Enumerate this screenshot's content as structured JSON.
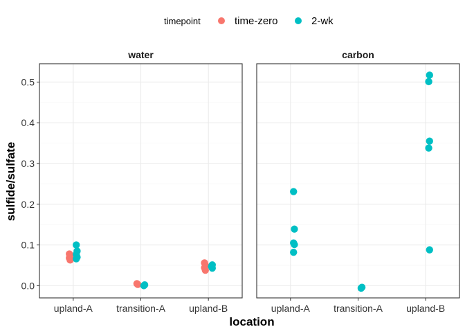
{
  "chart_data": {
    "type": "scatter",
    "xlabel": "location",
    "ylabel": "sulfide/sulfate",
    "categories": [
      "upland-A",
      "transition-A",
      "upland-B"
    ],
    "ylim": [
      -0.03,
      0.545
    ],
    "yticks": [
      0.0,
      0.1,
      0.2,
      0.3,
      0.4,
      0.5
    ],
    "ytick_labels": [
      "0.0",
      "0.1",
      "0.2",
      "0.3",
      "0.4",
      "0.5"
    ],
    "grid": true,
    "legend": {
      "title": "timepoint",
      "position": "top",
      "entries": [
        {
          "name": "time-zero",
          "color": "#F8766D"
        },
        {
          "name": "2-wk",
          "color": "#00BFC4"
        }
      ]
    },
    "panels": [
      {
        "title": "water",
        "series": [
          {
            "name": "time-zero",
            "color": "#F8766D",
            "points": [
              {
                "x": "upland-A",
                "y": 0.078
              },
              {
                "x": "upland-A",
                "y": 0.072
              },
              {
                "x": "upland-A",
                "y": 0.068
              },
              {
                "x": "upland-A",
                "y": 0.063
              },
              {
                "x": "transition-A",
                "y": 0.005
              },
              {
                "x": "transition-A",
                "y": 0.003
              },
              {
                "x": "upland-B",
                "y": 0.056
              },
              {
                "x": "upland-B",
                "y": 0.05
              },
              {
                "x": "upland-B",
                "y": 0.044
              },
              {
                "x": "upland-B",
                "y": 0.038
              }
            ]
          },
          {
            "name": "2-wk",
            "color": "#00BFC4",
            "points": [
              {
                "x": "upland-A",
                "y": 0.1
              },
              {
                "x": "upland-A",
                "y": 0.085
              },
              {
                "x": "upland-A",
                "y": 0.077
              },
              {
                "x": "upland-A",
                "y": 0.07
              },
              {
                "x": "upland-A",
                "y": 0.066
              },
              {
                "x": "transition-A",
                "y": 0.002
              },
              {
                "x": "transition-A",
                "y": 0.0
              },
              {
                "x": "upland-B",
                "y": 0.051
              },
              {
                "x": "upland-B",
                "y": 0.047
              },
              {
                "x": "upland-B",
                "y": 0.043
              }
            ]
          }
        ]
      },
      {
        "title": "carbon",
        "series": [
          {
            "name": "time-zero",
            "color": "#F8766D",
            "points": []
          },
          {
            "name": "2-wk",
            "color": "#00BFC4",
            "points": [
              {
                "x": "upland-A",
                "y": 0.231
              },
              {
                "x": "upland-A",
                "y": 0.139
              },
              {
                "x": "upland-A",
                "y": 0.105
              },
              {
                "x": "upland-A",
                "y": 0.101
              },
              {
                "x": "upland-A",
                "y": 0.082
              },
              {
                "x": "transition-A",
                "y": -0.004
              },
              {
                "x": "transition-A",
                "y": -0.006
              },
              {
                "x": "upland-B",
                "y": 0.517
              },
              {
                "x": "upland-B",
                "y": 0.501
              },
              {
                "x": "upland-B",
                "y": 0.355
              },
              {
                "x": "upland-B",
                "y": 0.338
              },
              {
                "x": "upland-B",
                "y": 0.088
              }
            ]
          }
        ]
      }
    ]
  }
}
